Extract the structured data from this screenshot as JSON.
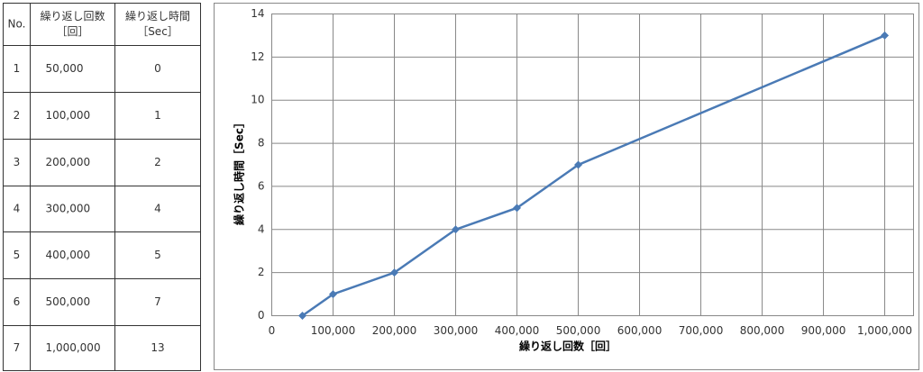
{
  "table": {
    "header": [
      [
        "No."
      ],
      [
        "繰り返し回数",
        "［回］"
      ],
      [
        "繰り返し時間",
        "［Sec］"
      ]
    ],
    "rows": [
      [
        "1",
        "50,000",
        "0"
      ],
      [
        "2",
        "100,000",
        "1"
      ],
      [
        "3",
        "200,000",
        "2"
      ],
      [
        "4",
        "300,000",
        "4"
      ],
      [
        "5",
        "400,000",
        "5"
      ],
      [
        "6",
        "500,000",
        "7"
      ],
      [
        "7",
        "1,000,000",
        "13"
      ]
    ]
  },
  "chart_data": {
    "type": "line",
    "x_label": "繰り返し回数［回］",
    "y_label": "繰り返し時間［Sec］",
    "x": [
      50000,
      100000,
      200000,
      300000,
      400000,
      500000,
      1000000
    ],
    "values": [
      0,
      1,
      2,
      4,
      5,
      7,
      13
    ],
    "color": "#4a7ab5",
    "xlim": [
      0,
      1047000
    ],
    "xticks": [
      0,
      {
        "value": 100000,
        "label": "100,000"
      },
      {
        "value": 200000,
        "label": "200,000"
      },
      {
        "value": 300000,
        "label": "300,000"
      },
      {
        "value": 400000,
        "label": "400,000"
      },
      {
        "value": 500000,
        "label": "500,000"
      },
      {
        "value": 600000,
        "label": "600,000"
      },
      {
        "value": 700000,
        "label": "700,000"
      },
      {
        "value": 800000,
        "label": "800,000"
      },
      {
        "value": 900000,
        "label": "900,000"
      },
      {
        "value": 1000000,
        "label": "1,000,000"
      }
    ],
    "ylim": [
      0,
      14
    ],
    "yticks": [
      0,
      2,
      4,
      6,
      8,
      10,
      12,
      14
    ],
    "grid": true
  }
}
